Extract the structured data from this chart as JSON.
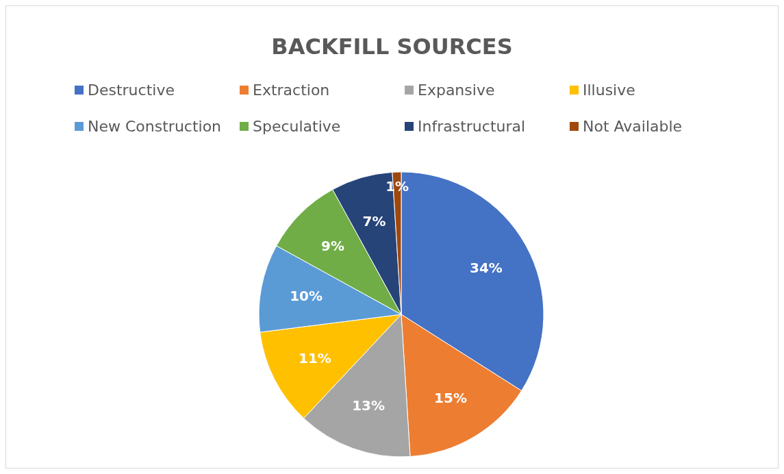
{
  "chart_data": {
    "type": "pie",
    "title": "BACKFILL SOURCES",
    "categories": [
      "Destructive",
      "Extraction",
      "Expansive",
      "Illusive",
      "New Construction",
      "Speculative",
      "Infrastructural",
      "Not Available"
    ],
    "values": [
      34,
      15,
      13,
      11,
      10,
      9,
      7,
      1
    ],
    "colors": [
      "#4472c4",
      "#ed7d31",
      "#a5a5a5",
      "#ffc000",
      "#5b9bd5",
      "#70ad47",
      "#264478",
      "#9e480e"
    ],
    "value_labels": [
      "34%",
      "15%",
      "13%",
      "11%",
      "10%",
      "9%",
      "7%",
      "1%"
    ],
    "legend": "top"
  }
}
